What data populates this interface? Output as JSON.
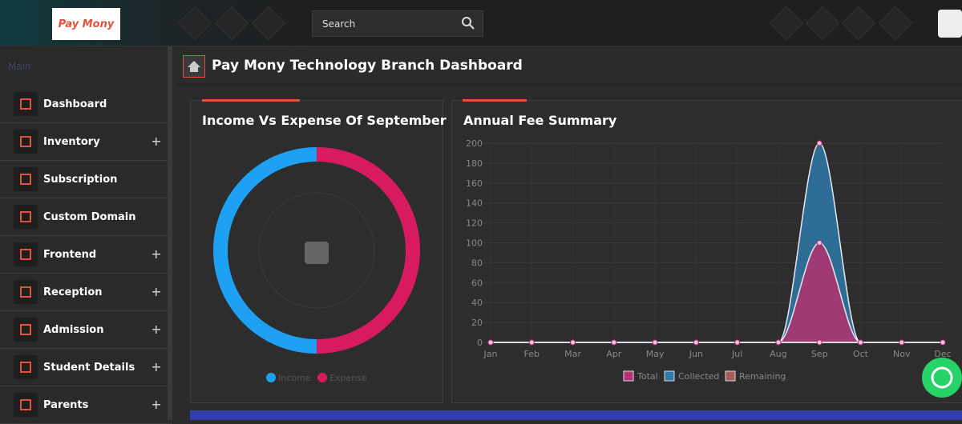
{
  "header": {
    "logo_text": "Pay Mony",
    "search_placeholder": "Search"
  },
  "sidebar": {
    "section": "Main",
    "items": [
      "Dashboard",
      "Inventory",
      "Subscription",
      "Custom Domain",
      "Frontend",
      "Reception",
      "Admission",
      "Student Details",
      "Parents"
    ]
  },
  "page_title": "Pay Mony Technology Branch Dashboard",
  "chart_data": [
    {
      "type": "doughnut",
      "title": "Income Vs Expense Of September",
      "categories": [
        "Income",
        "Expense"
      ],
      "values": [
        50,
        50
      ],
      "colors": [
        "#1ea1f3",
        "#d81b60"
      ]
    },
    {
      "type": "area",
      "title": "Annual Fee Summary",
      "categories": [
        "Jan",
        "Feb",
        "Mar",
        "Apr",
        "May",
        "Jun",
        "Jul",
        "Aug",
        "Sep",
        "Oct",
        "Nov",
        "Dec"
      ],
      "series": [
        {
          "name": "Total",
          "color": "#b3316f",
          "values": [
            0,
            0,
            0,
            0,
            0,
            0,
            0,
            0,
            100,
            0,
            0,
            0
          ]
        },
        {
          "name": "Collected",
          "color": "#2f79a8",
          "values": [
            0,
            0,
            0,
            0,
            0,
            0,
            0,
            0,
            200,
            0,
            0,
            0
          ]
        },
        {
          "name": "Remaining",
          "color": "#a85a5a",
          "values": [
            0,
            0,
            0,
            0,
            0,
            0,
            0,
            0,
            0,
            0,
            0,
            0
          ]
        }
      ],
      "ylim": [
        0,
        200
      ],
      "yticks": [
        0,
        20,
        40,
        60,
        80,
        100,
        120,
        140,
        160,
        180,
        200
      ],
      "grid": true
    }
  ]
}
